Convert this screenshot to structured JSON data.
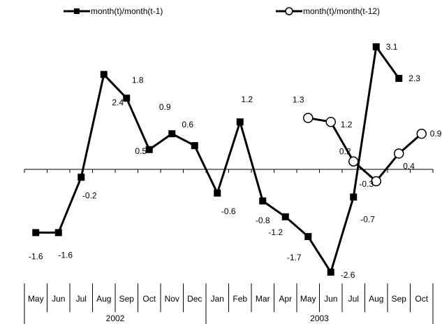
{
  "chart_data": {
    "type": "line",
    "categories": [
      "May",
      "Jun",
      "Jul",
      "Aug",
      "Sep",
      "Oct",
      "Nov",
      "Dec",
      "Jan",
      "Feb",
      "Mar",
      "Apr",
      "May",
      "Jun",
      "Jul",
      "Aug",
      "Sep",
      "Oct"
    ],
    "year_groups": [
      {
        "label": "2002",
        "start": 0,
        "end": 7
      },
      {
        "label": "2003",
        "start": 8,
        "end": 17
      }
    ],
    "series": [
      {
        "name": "month(t)/month(t-1)",
        "marker": "square",
        "color": "#000000",
        "values": [
          -1.6,
          -1.6,
          -0.2,
          2.4,
          1.8,
          0.5,
          0.9,
          0.6,
          -0.6,
          1.2,
          -0.8,
          -1.2,
          -1.7,
          -2.6,
          -0.7,
          3.1,
          2.3,
          null
        ],
        "value_labels": [
          "-1.6",
          "-1.6",
          "-0.2",
          "2.4",
          "1.8",
          "0.5",
          "0.9",
          "0.6",
          "-0.6",
          "1.2",
          "-0.8",
          "-1.2",
          "-1.7",
          "-2.6",
          "-0.7",
          "3.1",
          "2.3",
          null
        ]
      },
      {
        "name": "month(t)/month(t-12)",
        "marker": "circle",
        "color": "#000000",
        "values": [
          null,
          null,
          null,
          null,
          null,
          null,
          null,
          null,
          null,
          null,
          null,
          null,
          1.3,
          1.2,
          0.2,
          -0.3,
          0.4,
          0.9
        ],
        "value_labels": [
          null,
          null,
          null,
          null,
          null,
          null,
          null,
          null,
          null,
          null,
          null,
          null,
          "1.3",
          "1.2",
          "0.2",
          "-0.3",
          "0.4",
          "0.9"
        ]
      }
    ],
    "ylim": [
      -3,
      3.5
    ],
    "xlabel": "",
    "ylabel": "",
    "title": "",
    "grid": false,
    "legend_position": "top"
  }
}
